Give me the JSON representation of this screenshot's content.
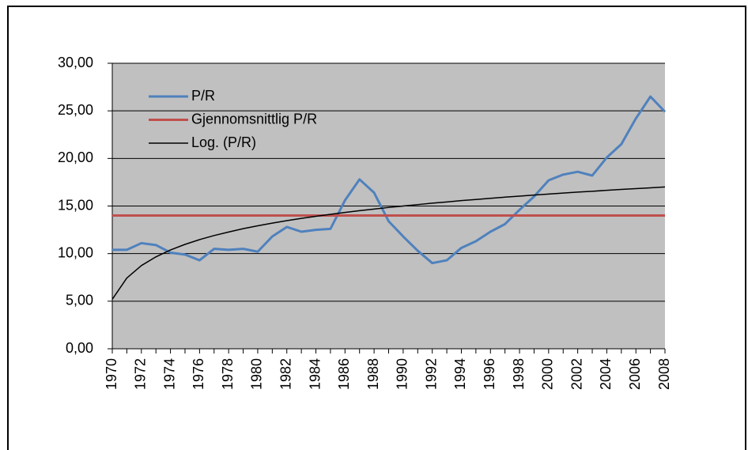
{
  "chart_data": {
    "type": "line",
    "categories": [
      "1970",
      null,
      "1972",
      null,
      "1974",
      null,
      "1976",
      null,
      "1978",
      null,
      "1980",
      null,
      "1982",
      null,
      "1984",
      null,
      "1986",
      null,
      "1988",
      null,
      "1990",
      null,
      "1992",
      null,
      "1994",
      null,
      "1996",
      null,
      "1998",
      null,
      "2000",
      null,
      "2002",
      null,
      "2004",
      null,
      "2006",
      null,
      "2008"
    ],
    "series": [
      {
        "name": "P/R",
        "color": "#4f81bd",
        "values": [
          10.4,
          10.4,
          11.1,
          10.9,
          10.1,
          9.9,
          9.3,
          10.5,
          10.4,
          10.5,
          10.2,
          11.8,
          12.8,
          12.3,
          12.5,
          12.6,
          15.6,
          17.8,
          16.4,
          13.4,
          11.8,
          10.3,
          9.0,
          9.3,
          10.6,
          11.3,
          12.3,
          13.1,
          14.6,
          16.0,
          17.7,
          18.3,
          18.6,
          18.2,
          20.1,
          21.5,
          24.2,
          26.5,
          24.9
        ]
      },
      {
        "name": "Gjennomsnittlig P/R",
        "color": "#c0504d",
        "values": [
          14,
          14,
          14,
          14,
          14,
          14,
          14,
          14,
          14,
          14,
          14,
          14,
          14,
          14,
          14,
          14,
          14,
          14,
          14,
          14,
          14,
          14,
          14,
          14,
          14,
          14,
          14,
          14,
          14,
          14,
          14,
          14,
          14,
          14,
          14,
          14,
          14,
          14,
          14
        ]
      },
      {
        "name": "Log. (P/R)",
        "color": "#000000",
        "values": [
          5.2,
          7.43,
          8.74,
          9.66,
          10.38,
          10.97,
          11.47,
          11.9,
          12.27,
          12.62,
          12.92,
          13.2,
          13.46,
          13.7,
          13.92,
          14.13,
          14.32,
          14.51,
          14.68,
          14.85,
          15.0,
          15.15,
          15.3,
          15.43,
          15.57,
          15.69,
          15.81,
          15.93,
          16.04,
          16.15,
          16.26,
          16.36,
          16.46,
          16.55,
          16.65,
          16.74,
          16.83,
          16.91,
          17.0
        ]
      }
    ],
    "ylim": [
      0,
      30
    ],
    "yticks": [
      {
        "value": 0,
        "label": "0,00"
      },
      {
        "value": 5,
        "label": "5,00"
      },
      {
        "value": 10,
        "label": "10,00"
      },
      {
        "value": 15,
        "label": "15,00"
      },
      {
        "value": 20,
        "label": "20,00"
      },
      {
        "value": 25,
        "label": "25,00"
      },
      {
        "value": 30,
        "label": "30,00"
      }
    ],
    "grid": true,
    "legend": "top-left",
    "plot_background": "#c0c0c0"
  }
}
